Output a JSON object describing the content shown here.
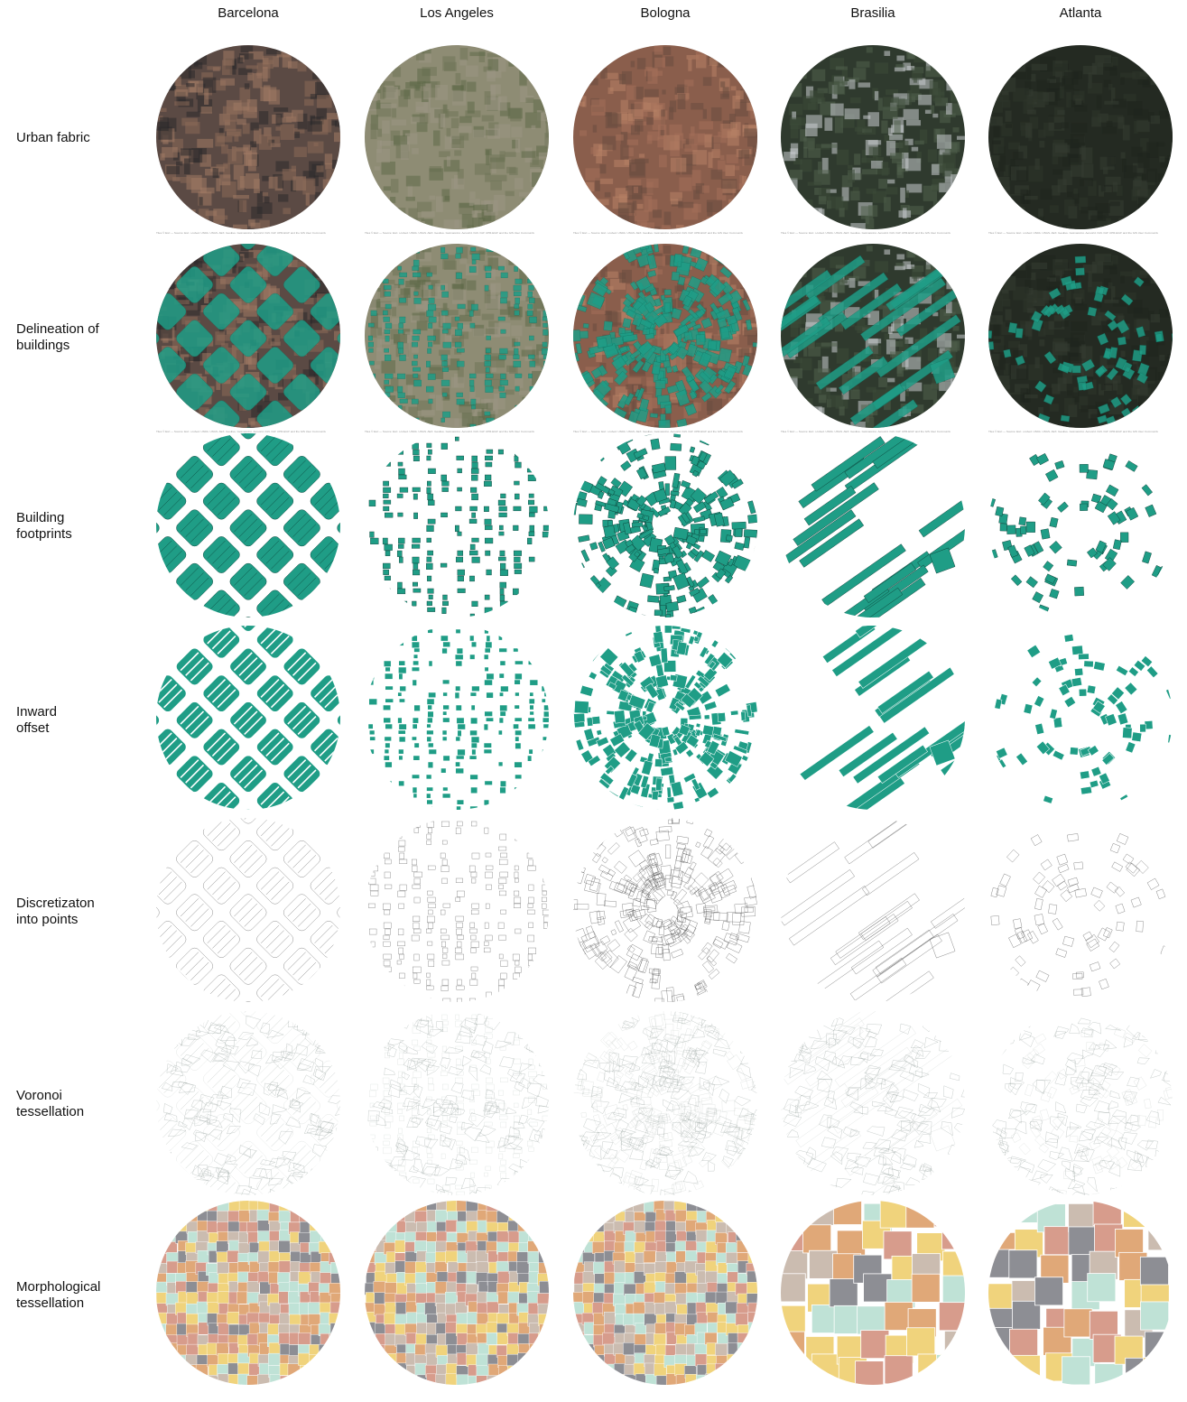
{
  "columns": [
    "Barcelona",
    "Los Angeles",
    "Bologna",
    "Brasilia",
    "Atlanta"
  ],
  "rows": [
    {
      "label": "Urban fabric",
      "kind": "aerial"
    },
    {
      "label": "Delineation of\nbuildings",
      "kind": "delineation"
    },
    {
      "label": "Building\nfootprints",
      "kind": "footprints"
    },
    {
      "label": "Inward\noffset",
      "kind": "offset"
    },
    {
      "label": "Discretizaton\ninto points",
      "kind": "points"
    },
    {
      "label": "Voronoi\ntessellation",
      "kind": "voronoi"
    },
    {
      "label": "Morphological\ntessellation",
      "kind": "morph"
    }
  ],
  "credit": "Tiles © Esri — Source: Esri, i-cubed, USDA, USGS, AEX, GeoEye, Getmapping, Aerogrid, IGN, IGP, UPR-EGP, and the GIS User Community",
  "colors": {
    "footprint": "#1f9d86",
    "outline": "#555555",
    "palette": [
      "#f0d37c",
      "#d79c8c",
      "#bfe2d6",
      "#8d8e94",
      "#cbbcb0",
      "#e0a878"
    ],
    "aerial": {
      "Barcelona": [
        "#5b4a44",
        "#8a6a58",
        "#2c2a2b",
        "#a07a64"
      ],
      "Los Angeles": [
        "#8e8c74",
        "#6f7458",
        "#9a9684",
        "#5e6a48"
      ],
      "Bologna": [
        "#8a5e4c",
        "#a4705a",
        "#6a4c40",
        "#b88266"
      ],
      "Brasilia": [
        "#2f3a2e",
        "#3c4a38",
        "#c8ccd0",
        "#51604c"
      ],
      "Atlanta": [
        "#242a22",
        "#2d3429",
        "#1f241d",
        "#353d31"
      ]
    }
  }
}
